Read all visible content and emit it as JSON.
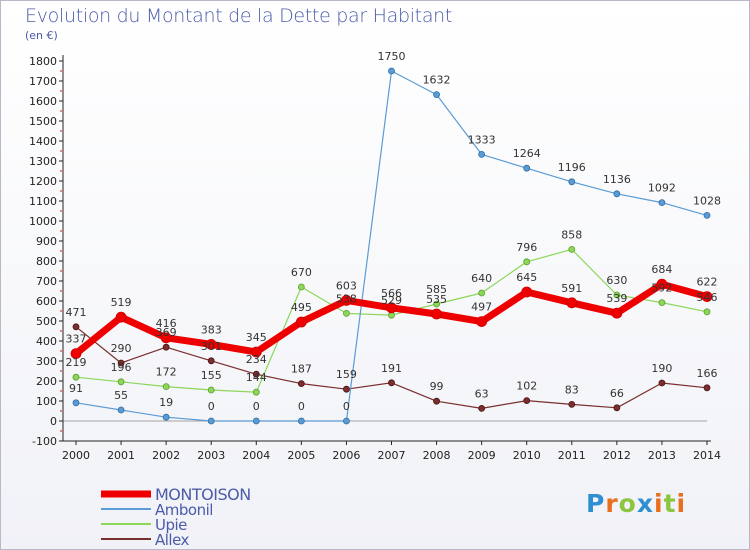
{
  "title": "Evolution du Montant de la Dette par Habitant",
  "unit": "(en €)",
  "brand": "Proxiti",
  "chart_data": {
    "type": "line",
    "title": "Evolution du Montant de la Dette par Habitant",
    "ylabel": "(en €)",
    "xlabel": "",
    "x": [
      "2000",
      "2001",
      "2002",
      "2003",
      "2004",
      "2005",
      "2006",
      "2007",
      "2008",
      "2009",
      "2010",
      "2011",
      "2012",
      "2013",
      "2014"
    ],
    "ylim": [
      -100,
      1800
    ],
    "yticks": [
      -100,
      0,
      100,
      200,
      300,
      400,
      500,
      600,
      700,
      800,
      900,
      1000,
      1100,
      1200,
      1300,
      1400,
      1500,
      1600,
      1700,
      1800
    ],
    "grid": false,
    "legend_position": "bottom-left",
    "series": [
      {
        "name": "MONTOISON",
        "color": "#ee0000",
        "values": [
          337,
          519,
          416,
          383,
          345,
          495,
          603,
          566,
          535,
          497,
          645,
          591,
          539,
          684,
          622
        ]
      },
      {
        "name": "Ambonil",
        "color": "#5b9bd5",
        "values": [
          91,
          55,
          19,
          0,
          0,
          0,
          0,
          1750,
          1632,
          1333,
          1264,
          1196,
          1136,
          1092,
          1028
        ]
      },
      {
        "name": "Upie",
        "color": "#8cd65a",
        "values": [
          219,
          196,
          172,
          155,
          144,
          670,
          538,
          529,
          585,
          640,
          796,
          858,
          630,
          592,
          546
        ]
      },
      {
        "name": "Allex",
        "color": "#7a2e2e",
        "values": [
          471,
          290,
          369,
          301,
          234,
          187,
          159,
          191,
          99,
          63,
          102,
          83,
          66,
          190,
          166
        ]
      }
    ]
  }
}
